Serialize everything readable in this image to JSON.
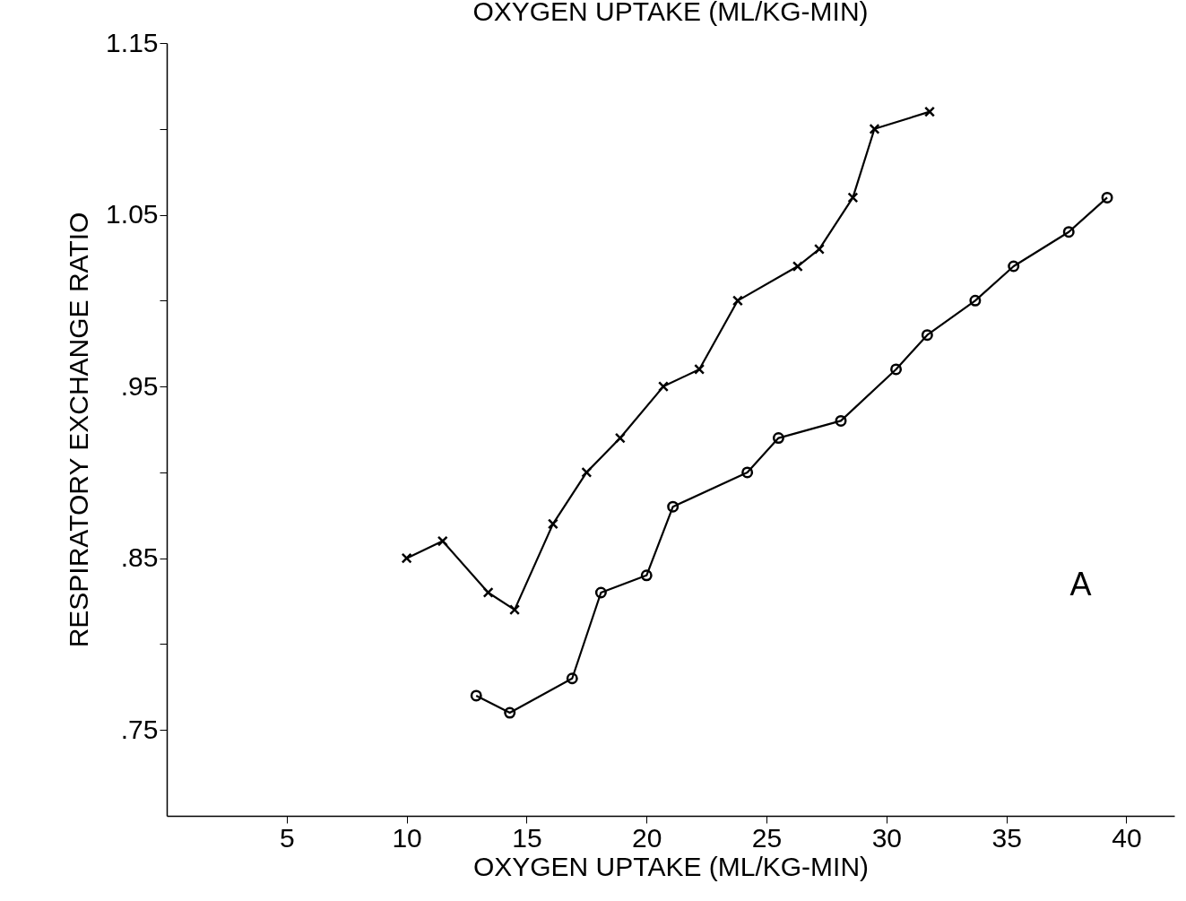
{
  "chart_data": {
    "type": "line",
    "xlabel": "OXYGEN UPTAKE (ML/KG-MIN)",
    "ylabel": "RESPIRATORY EXCHANGE RATIO",
    "annotations": [
      "OXYGEN UPTAKE (ML/KG-MIN)",
      "A"
    ],
    "xlim": [
      0,
      42
    ],
    "xticks": [
      5,
      10,
      15,
      20,
      25,
      30,
      35,
      40
    ],
    "ylim": [
      0.7,
      1.15
    ],
    "yticks": [
      {
        "value": 0.75,
        "label": ".75"
      },
      {
        "value": 0.8,
        "label": null
      },
      {
        "value": 0.85,
        "label": ".85"
      },
      {
        "value": 0.9,
        "label": null
      },
      {
        "value": 0.95,
        "label": ".95"
      },
      {
        "value": 1.0,
        "label": null
      },
      {
        "value": 1.05,
        "label": "1.05"
      },
      {
        "value": 1.1,
        "label": null
      },
      {
        "value": 1.15,
        "label": "1.15"
      }
    ],
    "grid": false,
    "series": [
      {
        "color": "#000000",
        "marker": "cross",
        "x": [
          10.0,
          11.5,
          13.4,
          14.5,
          16.1,
          17.5,
          18.9,
          20.7,
          22.2,
          23.8,
          26.3,
          27.2,
          28.6,
          29.5,
          31.8
        ],
        "values": [
          0.85,
          0.86,
          0.83,
          0.82,
          0.87,
          0.9,
          0.92,
          0.95,
          0.96,
          1.0,
          1.02,
          1.03,
          1.06,
          1.1,
          1.11
        ]
      },
      {
        "color": "#000000",
        "marker": "circle",
        "x": [
          12.9,
          14.3,
          16.9,
          18.1,
          20.0,
          21.1,
          24.2,
          25.5,
          28.1,
          30.4,
          31.7,
          33.7,
          35.3,
          37.6,
          39.2
        ],
        "values": [
          0.77,
          0.76,
          0.78,
          0.83,
          0.84,
          0.88,
          0.9,
          0.92,
          0.93,
          0.96,
          0.98,
          1.0,
          1.02,
          1.04,
          1.06
        ]
      }
    ]
  }
}
